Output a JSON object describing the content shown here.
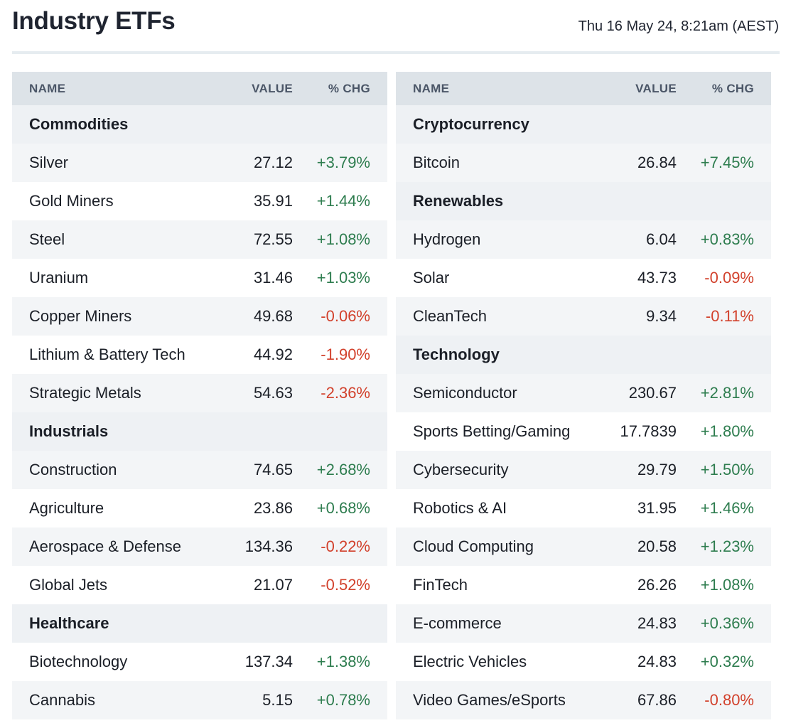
{
  "page": {
    "title": "Industry ETFs",
    "timestamp": "Thu 16 May 24, 8:21am (AEST)"
  },
  "columns": {
    "name": "NAME",
    "value": "VALUE",
    "chg": "% CHG"
  },
  "colors": {
    "positive": "#2e7d4f",
    "negative": "#d2412c",
    "header_bg": "#dde3e8",
    "section_bg": "#eef1f4"
  },
  "left": [
    {
      "type": "section",
      "name": "Commodities"
    },
    {
      "type": "row",
      "name": "Silver",
      "value": "27.12",
      "chg": "+3.79%",
      "dir": "pos"
    },
    {
      "type": "row",
      "name": "Gold Miners",
      "value": "35.91",
      "chg": "+1.44%",
      "dir": "pos"
    },
    {
      "type": "row",
      "name": "Steel",
      "value": "72.55",
      "chg": "+1.08%",
      "dir": "pos"
    },
    {
      "type": "row",
      "name": "Uranium",
      "value": "31.46",
      "chg": "+1.03%",
      "dir": "pos"
    },
    {
      "type": "row",
      "name": "Copper Miners",
      "value": "49.68",
      "chg": "-0.06%",
      "dir": "neg"
    },
    {
      "type": "row",
      "name": "Lithium & Battery Tech",
      "value": "44.92",
      "chg": "-1.90%",
      "dir": "neg"
    },
    {
      "type": "row",
      "name": "Strategic Metals",
      "value": "54.63",
      "chg": "-2.36%",
      "dir": "neg"
    },
    {
      "type": "section",
      "name": "Industrials"
    },
    {
      "type": "row",
      "name": "Construction",
      "value": "74.65",
      "chg": "+2.68%",
      "dir": "pos"
    },
    {
      "type": "row",
      "name": "Agriculture",
      "value": "23.86",
      "chg": "+0.68%",
      "dir": "pos"
    },
    {
      "type": "row",
      "name": "Aerospace & Defense",
      "value": "134.36",
      "chg": "-0.22%",
      "dir": "neg"
    },
    {
      "type": "row",
      "name": "Global Jets",
      "value": "21.07",
      "chg": "-0.52%",
      "dir": "neg"
    },
    {
      "type": "section",
      "name": "Healthcare"
    },
    {
      "type": "row",
      "name": "Biotechnology",
      "value": "137.34",
      "chg": "+1.38%",
      "dir": "pos"
    },
    {
      "type": "row",
      "name": "Cannabis",
      "value": "5.15",
      "chg": "+0.78%",
      "dir": "pos"
    }
  ],
  "right": [
    {
      "type": "section",
      "name": "Cryptocurrency"
    },
    {
      "type": "row",
      "name": "Bitcoin",
      "value": "26.84",
      "chg": "+7.45%",
      "dir": "pos"
    },
    {
      "type": "section",
      "name": "Renewables"
    },
    {
      "type": "row",
      "name": "Hydrogen",
      "value": "6.04",
      "chg": "+0.83%",
      "dir": "pos"
    },
    {
      "type": "row",
      "name": "Solar",
      "value": "43.73",
      "chg": "-0.09%",
      "dir": "neg"
    },
    {
      "type": "row",
      "name": "CleanTech",
      "value": "9.34",
      "chg": "-0.11%",
      "dir": "neg"
    },
    {
      "type": "section",
      "name": "Technology"
    },
    {
      "type": "row",
      "name": "Semiconductor",
      "value": "230.67",
      "chg": "+2.81%",
      "dir": "pos"
    },
    {
      "type": "row",
      "name": "Sports Betting/Gaming",
      "value": "17.7839",
      "chg": "+1.80%",
      "dir": "pos"
    },
    {
      "type": "row",
      "name": "Cybersecurity",
      "value": "29.79",
      "chg": "+1.50%",
      "dir": "pos"
    },
    {
      "type": "row",
      "name": "Robotics & AI",
      "value": "31.95",
      "chg": "+1.46%",
      "dir": "pos"
    },
    {
      "type": "row",
      "name": "Cloud Computing",
      "value": "20.58",
      "chg": "+1.23%",
      "dir": "pos"
    },
    {
      "type": "row",
      "name": "FinTech",
      "value": "26.26",
      "chg": "+1.08%",
      "dir": "pos"
    },
    {
      "type": "row",
      "name": "E-commerce",
      "value": "24.83",
      "chg": "+0.36%",
      "dir": "pos"
    },
    {
      "type": "row",
      "name": "Electric Vehicles",
      "value": "24.83",
      "chg": "+0.32%",
      "dir": "pos"
    },
    {
      "type": "row",
      "name": "Video Games/eSports",
      "value": "67.86",
      "chg": "-0.80%",
      "dir": "neg"
    }
  ]
}
